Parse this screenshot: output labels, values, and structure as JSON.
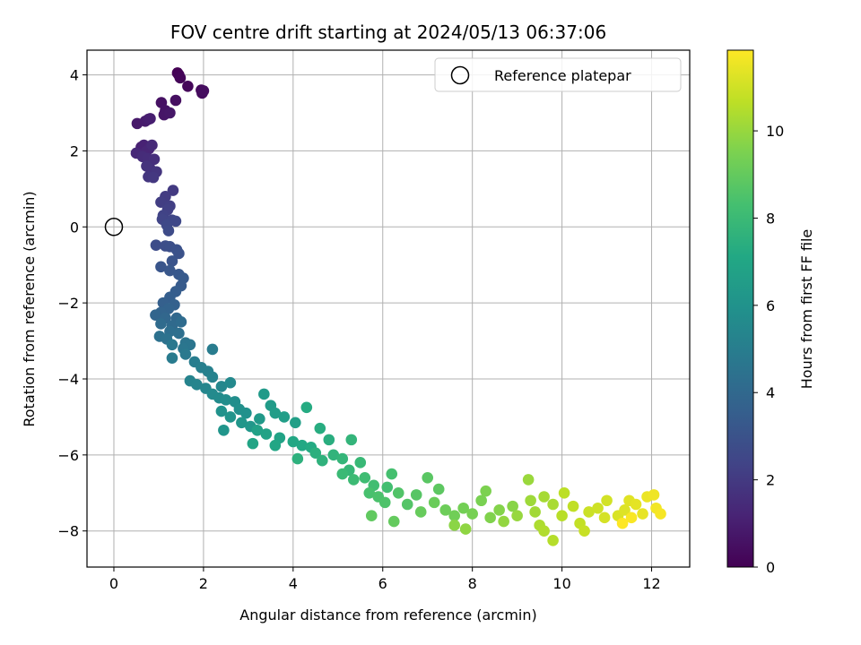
{
  "chart_data": {
    "type": "scatter",
    "title": "FOV centre drift starting at 2024/05/13 06:37:06",
    "xlabel": "Angular distance from reference (arcmin)",
    "ylabel": "Rotation from reference (arcmin)",
    "xlim": [
      -0.6,
      12.85
    ],
    "ylim": [
      -8.95,
      4.65
    ],
    "xticks": [
      0,
      2,
      4,
      6,
      8,
      10,
      12
    ],
    "yticks": [
      -8,
      -6,
      -4,
      -2,
      0,
      2,
      4
    ],
    "grid": true,
    "legend": {
      "placement": "upper-right",
      "entries": [
        "Reference platepar"
      ]
    },
    "reference_point": {
      "x": 0,
      "y": 0,
      "label": "Reference platepar"
    },
    "colorbar": {
      "label": "Hours from first FF file",
      "range": [
        0,
        11.85
      ],
      "ticks": [
        0,
        2,
        4,
        6,
        8,
        10
      ],
      "colormap": "viridis"
    },
    "series": [
      {
        "points": [
          [
            1.42,
            4.05
          ],
          [
            1.45,
            4.0
          ],
          [
            1.48,
            3.92
          ],
          [
            1.65,
            3.7
          ],
          [
            1.95,
            3.6
          ],
          [
            1.97,
            3.52
          ],
          [
            2.0,
            3.58
          ],
          [
            1.38,
            3.33
          ],
          [
            1.06,
            3.27
          ],
          [
            1.15,
            3.06
          ],
          [
            1.12,
            2.95
          ],
          [
            1.25,
            3.0
          ],
          [
            0.52,
            2.72
          ],
          [
            0.7,
            2.78
          ],
          [
            0.77,
            2.83
          ],
          [
            0.81,
            2.85
          ],
          [
            0.61,
            2.1
          ],
          [
            0.67,
            2.15
          ],
          [
            0.78,
            2.05
          ],
          [
            0.72,
            1.98
          ],
          [
            0.5,
            1.94
          ],
          [
            0.85,
            2.15
          ],
          [
            0.64,
            1.85
          ],
          [
            0.75,
            1.8
          ],
          [
            0.9,
            1.78
          ],
          [
            0.8,
            1.55
          ],
          [
            0.73,
            1.6
          ],
          [
            0.95,
            1.45
          ],
          [
            0.77,
            1.32
          ],
          [
            0.88,
            1.3
          ],
          [
            1.32,
            0.96
          ],
          [
            1.15,
            0.8
          ],
          [
            1.05,
            0.65
          ],
          [
            1.25,
            0.55
          ],
          [
            1.2,
            0.45
          ],
          [
            1.1,
            0.3
          ],
          [
            1.08,
            0.2
          ],
          [
            1.3,
            0.18
          ],
          [
            1.38,
            0.15
          ],
          [
            1.18,
            0.05
          ],
          [
            1.22,
            -0.1
          ],
          [
            0.94,
            -0.48
          ],
          [
            1.15,
            -0.5
          ],
          [
            1.25,
            -0.52
          ],
          [
            1.4,
            -0.6
          ],
          [
            1.45,
            -0.7
          ],
          [
            1.3,
            -0.9
          ],
          [
            1.05,
            -1.05
          ],
          [
            1.25,
            -1.15
          ],
          [
            1.45,
            -1.25
          ],
          [
            1.55,
            -1.35
          ],
          [
            1.5,
            -1.55
          ],
          [
            1.38,
            -1.7
          ],
          [
            1.25,
            -1.85
          ],
          [
            1.1,
            -2.0
          ],
          [
            1.35,
            -2.05
          ],
          [
            1.22,
            -2.15
          ],
          [
            1.05,
            -2.25
          ],
          [
            0.93,
            -2.32
          ],
          [
            1.15,
            -2.4
          ],
          [
            1.4,
            -2.4
          ],
          [
            1.3,
            -2.6
          ],
          [
            1.05,
            -2.55
          ],
          [
            1.5,
            -2.5
          ],
          [
            1.25,
            -2.75
          ],
          [
            1.45,
            -2.8
          ],
          [
            1.02,
            -2.88
          ],
          [
            1.18,
            -2.95
          ],
          [
            1.6,
            -3.05
          ],
          [
            1.7,
            -3.1
          ],
          [
            1.55,
            -3.2
          ],
          [
            1.3,
            -3.1
          ],
          [
            1.6,
            -3.35
          ],
          [
            1.3,
            -3.45
          ],
          [
            2.2,
            -3.22
          ],
          [
            1.8,
            -3.55
          ],
          [
            1.95,
            -3.7
          ],
          [
            2.1,
            -3.8
          ],
          [
            2.2,
            -3.95
          ],
          [
            1.7,
            -4.05
          ],
          [
            1.85,
            -4.15
          ],
          [
            2.05,
            -4.25
          ],
          [
            2.4,
            -4.2
          ],
          [
            2.6,
            -4.1
          ],
          [
            2.2,
            -4.4
          ],
          [
            2.35,
            -4.5
          ],
          [
            2.5,
            -4.55
          ],
          [
            2.7,
            -4.6
          ],
          [
            2.8,
            -4.8
          ],
          [
            2.95,
            -4.9
          ],
          [
            2.4,
            -4.85
          ],
          [
            2.6,
            -5.0
          ],
          [
            2.45,
            -5.35
          ],
          [
            2.85,
            -5.15
          ],
          [
            3.05,
            -5.25
          ],
          [
            3.25,
            -5.05
          ],
          [
            3.35,
            -4.4
          ],
          [
            3.5,
            -4.7
          ],
          [
            3.6,
            -4.9
          ],
          [
            3.8,
            -5.0
          ],
          [
            4.05,
            -5.15
          ],
          [
            3.2,
            -5.35
          ],
          [
            3.4,
            -5.45
          ],
          [
            3.7,
            -5.55
          ],
          [
            3.1,
            -5.7
          ],
          [
            3.6,
            -5.75
          ],
          [
            4.0,
            -5.65
          ],
          [
            4.2,
            -5.75
          ],
          [
            4.4,
            -5.8
          ],
          [
            4.3,
            -4.75
          ],
          [
            4.6,
            -5.3
          ],
          [
            4.8,
            -5.6
          ],
          [
            4.5,
            -5.95
          ],
          [
            4.1,
            -6.1
          ],
          [
            4.65,
            -6.15
          ],
          [
            4.9,
            -6.0
          ],
          [
            5.3,
            -5.6
          ],
          [
            5.1,
            -6.1
          ],
          [
            5.25,
            -6.4
          ],
          [
            5.5,
            -6.2
          ],
          [
            5.1,
            -6.5
          ],
          [
            5.35,
            -6.65
          ],
          [
            5.6,
            -6.6
          ],
          [
            5.8,
            -6.8
          ],
          [
            6.1,
            -6.85
          ],
          [
            6.2,
            -6.5
          ],
          [
            5.7,
            -7.0
          ],
          [
            5.9,
            -7.1
          ],
          [
            6.05,
            -7.25
          ],
          [
            6.35,
            -7.0
          ],
          [
            6.55,
            -7.3
          ],
          [
            6.75,
            -7.05
          ],
          [
            7.0,
            -6.6
          ],
          [
            7.25,
            -6.9
          ],
          [
            5.75,
            -7.6
          ],
          [
            6.25,
            -7.75
          ],
          [
            6.85,
            -7.5
          ],
          [
            7.15,
            -7.25
          ],
          [
            7.4,
            -7.45
          ],
          [
            7.6,
            -7.6
          ],
          [
            7.8,
            -7.4
          ],
          [
            8.0,
            -7.55
          ],
          [
            8.2,
            -7.2
          ],
          [
            8.3,
            -6.95
          ],
          [
            8.4,
            -7.65
          ],
          [
            8.6,
            -7.45
          ],
          [
            8.9,
            -7.35
          ],
          [
            7.6,
            -7.85
          ],
          [
            7.85,
            -7.95
          ],
          [
            8.7,
            -7.75
          ],
          [
            9.0,
            -7.6
          ],
          [
            9.25,
            -6.65
          ],
          [
            9.3,
            -7.2
          ],
          [
            9.4,
            -7.5
          ],
          [
            9.6,
            -7.1
          ],
          [
            9.8,
            -7.3
          ],
          [
            9.5,
            -7.85
          ],
          [
            9.6,
            -8.0
          ],
          [
            9.8,
            -8.25
          ],
          [
            10.0,
            -7.6
          ],
          [
            10.05,
            -7.0
          ],
          [
            10.25,
            -7.35
          ],
          [
            10.4,
            -7.8
          ],
          [
            10.5,
            -8.0
          ],
          [
            10.6,
            -7.5
          ],
          [
            10.8,
            -7.4
          ],
          [
            11.0,
            -7.2
          ],
          [
            10.95,
            -7.65
          ],
          [
            11.25,
            -7.6
          ],
          [
            11.4,
            -7.45
          ],
          [
            11.5,
            -7.2
          ],
          [
            11.65,
            -7.3
          ],
          [
            11.8,
            -7.55
          ],
          [
            11.9,
            -7.1
          ],
          [
            12.05,
            -7.05
          ],
          [
            12.1,
            -7.4
          ],
          [
            12.2,
            -7.55
          ],
          [
            11.55,
            -7.65
          ],
          [
            11.35,
            -7.8
          ]
        ]
      }
    ]
  }
}
